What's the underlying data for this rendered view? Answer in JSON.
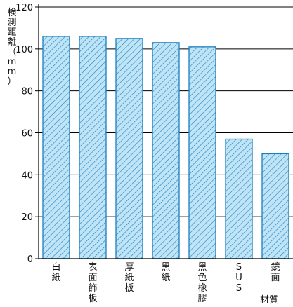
{
  "chart_data": {
    "type": "bar",
    "ylabel": "検測距離（mm）",
    "xlabel": "材質",
    "categories": [
      "白紙",
      "表面飾板",
      "厚紙板",
      "黑紙",
      "黑色橡膠",
      "SUS",
      "鏡面"
    ],
    "values": [
      106,
      106,
      105,
      103,
      101,
      57,
      50
    ],
    "ylim": [
      0,
      120
    ],
    "yticks": [
      0,
      20,
      40,
      60,
      80,
      100,
      120
    ],
    "grid": true,
    "bar_fill": "#bfe4f6",
    "bar_stroke": "#1a7fbf",
    "hatch_color": "#1a7fbf",
    "grid_color": "#000000"
  }
}
